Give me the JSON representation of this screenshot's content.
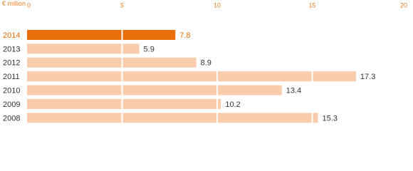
{
  "chart_data": {
    "type": "hbar",
    "x_label": "€ million",
    "categories": [
      "2014",
      "2013",
      "2012",
      "2011",
      "2010",
      "2009",
      "2008"
    ],
    "values": [
      7.8,
      5.9,
      8.9,
      17.3,
      13.4,
      10.2,
      15.3
    ],
    "colors": [
      "#e96f0c",
      "#f9cdab",
      "#f9cdab",
      "#f9cdab",
      "#f9cdab",
      "#f9cdab",
      "#f9cdab"
    ],
    "label_colors": [
      "#e96f0c",
      "#333333",
      "#333333",
      "#333333",
      "#333333",
      "#333333",
      "#333333"
    ],
    "xlim": [
      0,
      20
    ],
    "xticks": [
      0,
      5,
      10,
      15,
      20
    ],
    "tick_color": "#e8802a",
    "grid": true,
    "grid_color": "#ffffff"
  }
}
